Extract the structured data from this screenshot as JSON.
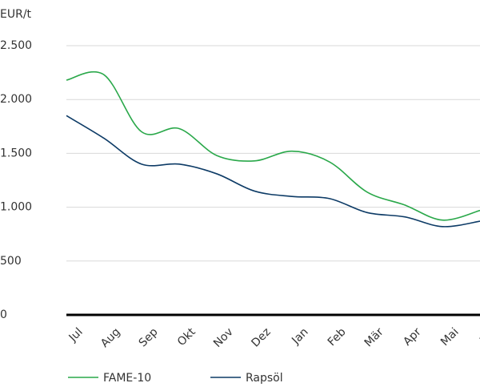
{
  "chart_data": {
    "type": "line",
    "y_label": "EUR/t",
    "categories": [
      "Jul",
      "Aug",
      "Sep",
      "Okt",
      "Nov",
      "Dez",
      "Jan",
      "Feb",
      "Mär",
      "Apr",
      "Mai",
      "Jun"
    ],
    "series": [
      {
        "name": "FAME-10",
        "color": "#2aa84a",
        "values": [
          2180,
          2230,
          1700,
          1730,
          1480,
          1430,
          1520,
          1420,
          1140,
          1020,
          880,
          970
        ]
      },
      {
        "name": "Rapsöl",
        "color": "#0d3b66",
        "values": [
          1850,
          1640,
          1400,
          1400,
          1310,
          1150,
          1100,
          1080,
          950,
          910,
          820,
          870
        ]
      }
    ],
    "ylim": [
      0,
      2500
    ],
    "yticks": [
      {
        "value": 0,
        "label": "0"
      },
      {
        "value": 500,
        "label": "500"
      },
      {
        "value": 1000,
        "label": "1.000"
      },
      {
        "value": 1500,
        "label": "1.500"
      },
      {
        "value": 2000,
        "label": "2.000"
      },
      {
        "value": 2500,
        "label": "2.500"
      }
    ],
    "grid": true,
    "legend": "bottom"
  }
}
